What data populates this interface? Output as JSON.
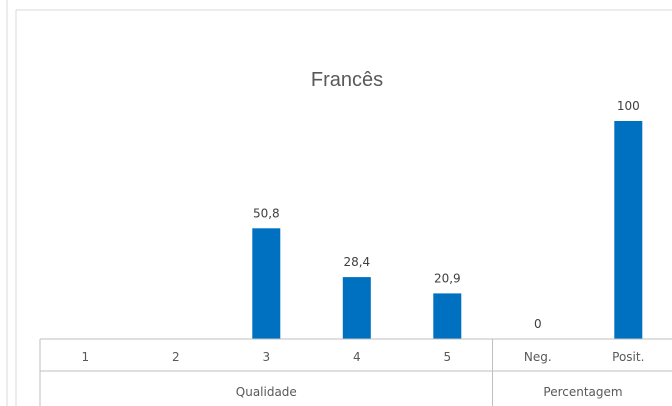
{
  "chart_data": {
    "type": "bar",
    "title": "Francês",
    "xlabel": "",
    "ylabel": "",
    "ylim": [
      0,
      100
    ],
    "grid": false,
    "legend": "none",
    "bar_color": "#0070C0",
    "groups": [
      {
        "name": "Qualidade",
        "categories": [
          "1",
          "2",
          "3",
          "4",
          "5"
        ]
      },
      {
        "name": "Percentagem",
        "categories": [
          "Neg.",
          "Posit."
        ]
      }
    ],
    "categories": [
      "1",
      "2",
      "3",
      "4",
      "5",
      "Neg.",
      "Posit."
    ],
    "values": [
      null,
      null,
      50.8,
      28.4,
      20.9,
      0,
      100
    ],
    "data_labels": [
      "",
      "",
      "50,8",
      "28,4",
      "20,9",
      "0",
      "100"
    ]
  }
}
